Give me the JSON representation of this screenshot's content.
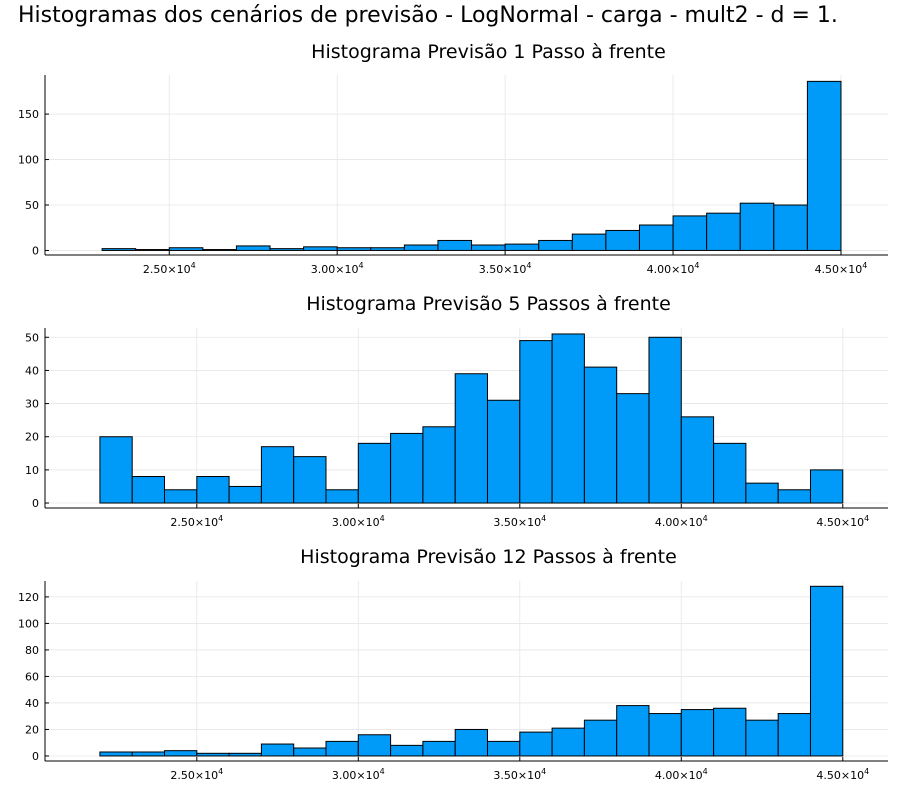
{
  "figure_title": "Histogramas dos cenários de previsão - LogNormal - carga - mult2 - d = 1.",
  "colors": {
    "bar_fill": "#009af9",
    "bar_edge": "#000000",
    "grid": "#e6e6e6"
  },
  "chart_data": [
    {
      "type": "bar",
      "title": "Histograma Previsão 1 Passo à frente",
      "xlabel": "",
      "ylabel": "",
      "xlim": [
        21300,
        46400
      ],
      "ylim": [
        -5,
        193
      ],
      "grid": true,
      "x_ticks": [
        25000,
        30000,
        35000,
        40000,
        45000
      ],
      "x_tick_labels": [
        {
          "mant": "2.50×10",
          "exp": "4"
        },
        {
          "mant": "3.00×10",
          "exp": "4"
        },
        {
          "mant": "3.50×10",
          "exp": "4"
        },
        {
          "mant": "4.00×10",
          "exp": "4"
        },
        {
          "mant": "4.50×10",
          "exp": "4"
        }
      ],
      "y_ticks": [
        0,
        50,
        100,
        150
      ],
      "y_tick_labels": [
        "0",
        "50",
        "100",
        "150"
      ],
      "bin_edges": [
        23000,
        24000,
        25000,
        26000,
        27000,
        28000,
        29000,
        30000,
        31000,
        32000,
        33000,
        34000,
        35000,
        36000,
        37000,
        38000,
        39000,
        40000,
        41000,
        42000,
        43000,
        44000,
        45000
      ],
      "values": [
        2,
        1,
        3,
        1,
        5,
        2,
        4,
        3,
        3,
        6,
        11,
        6,
        7,
        11,
        18,
        22,
        28,
        38,
        41,
        52,
        50,
        186
      ]
    },
    {
      "type": "bar",
      "title": "Histograma Previsão 5 Passos à frente",
      "xlabel": "",
      "ylabel": "",
      "xlim": [
        20300,
        46400
      ],
      "ylim": [
        -1.5,
        52.8
      ],
      "grid": true,
      "x_ticks": [
        25000,
        30000,
        35000,
        40000,
        45000
      ],
      "x_tick_labels": [
        {
          "mant": "2.50×10",
          "exp": "4"
        },
        {
          "mant": "3.00×10",
          "exp": "4"
        },
        {
          "mant": "3.50×10",
          "exp": "4"
        },
        {
          "mant": "4.00×10",
          "exp": "4"
        },
        {
          "mant": "4.50×10",
          "exp": "4"
        }
      ],
      "y_ticks": [
        0,
        10,
        20,
        30,
        40,
        50
      ],
      "y_tick_labels": [
        "0",
        "10",
        "20",
        "30",
        "40",
        "50"
      ],
      "bin_edges": [
        22000,
        23000,
        24000,
        25000,
        26000,
        27000,
        28000,
        29000,
        30000,
        31000,
        32000,
        33000,
        34000,
        35000,
        36000,
        37000,
        38000,
        39000,
        40000,
        41000,
        42000,
        43000,
        44000,
        45000
      ],
      "values": [
        20,
        8,
        4,
        8,
        5,
        17,
        14,
        4,
        18,
        21,
        23,
        39,
        31,
        49,
        51,
        41,
        33,
        50,
        26,
        18,
        6,
        4,
        10
      ]
    },
    {
      "type": "bar",
      "title": "Histograma Previsão 12 Passos à frente",
      "xlabel": "",
      "ylabel": "",
      "xlim": [
        20300,
        46400
      ],
      "ylim": [
        -3.8,
        132
      ],
      "grid": true,
      "x_ticks": [
        25000,
        30000,
        35000,
        40000,
        45000
      ],
      "x_tick_labels": [
        {
          "mant": "2.50×10",
          "exp": "4"
        },
        {
          "mant": "3.00×10",
          "exp": "4"
        },
        {
          "mant": "3.50×10",
          "exp": "4"
        },
        {
          "mant": "4.00×10",
          "exp": "4"
        },
        {
          "mant": "4.50×10",
          "exp": "4"
        }
      ],
      "y_ticks": [
        0,
        20,
        40,
        60,
        80,
        100,
        120
      ],
      "y_tick_labels": [
        "0",
        "20",
        "40",
        "60",
        "80",
        "100",
        "120"
      ],
      "bin_edges": [
        22000,
        23000,
        24000,
        25000,
        26000,
        27000,
        28000,
        29000,
        30000,
        31000,
        32000,
        33000,
        34000,
        35000,
        36000,
        37000,
        38000,
        39000,
        40000,
        41000,
        42000,
        43000,
        44000,
        45000
      ],
      "values": [
        3,
        3,
        4,
        2,
        2,
        9,
        6,
        11,
        16,
        8,
        11,
        20,
        11,
        18,
        21,
        27,
        38,
        32,
        35,
        36,
        27,
        32,
        128
      ]
    }
  ]
}
